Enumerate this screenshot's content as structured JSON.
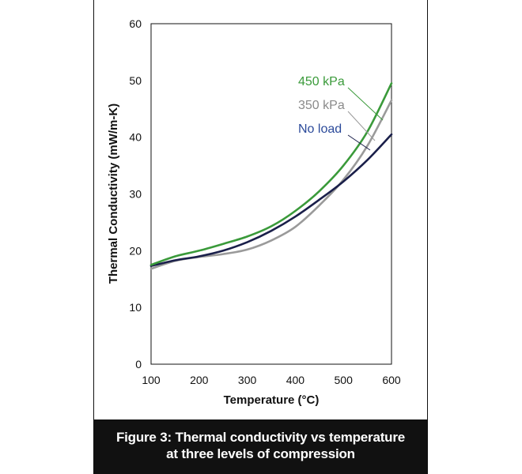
{
  "caption": {
    "line1": "Figure 3: Thermal conductivity vs temperature",
    "line2": "at three levels of compression"
  },
  "chart_data": {
    "type": "line",
    "title": "",
    "xlabel": "Temperature (°C)",
    "ylabel": "Thermal Conductivity (mW/m-K)",
    "xlim": [
      100,
      600
    ],
    "ylim": [
      0,
      60
    ],
    "xticks": [
      100,
      200,
      300,
      400,
      500,
      600
    ],
    "yticks": [
      0,
      10,
      20,
      30,
      40,
      50,
      60
    ],
    "grid": false,
    "series": [
      {
        "name": "450 kPa",
        "color": "#3a9a3a",
        "x": [
          100,
          150,
          200,
          250,
          300,
          350,
          400,
          450,
          500,
          550,
          600
        ],
        "y": [
          17.5,
          19.0,
          20.0,
          21.2,
          22.5,
          24.3,
          27.0,
          30.5,
          35.0,
          41.0,
          49.5
        ]
      },
      {
        "name": "350 kPa",
        "color": "#9a9a9a",
        "x": [
          100,
          150,
          200,
          250,
          300,
          350,
          400,
          450,
          500,
          550,
          600
        ],
        "y": [
          16.8,
          18.2,
          18.9,
          19.4,
          20.2,
          21.8,
          24.2,
          28.0,
          32.5,
          38.5,
          46.5
        ]
      },
      {
        "name": "No load",
        "color": "#1a1f4a",
        "x": [
          100,
          150,
          200,
          250,
          300,
          350,
          400,
          450,
          500,
          550,
          600
        ],
        "y": [
          17.3,
          18.3,
          19.0,
          20.0,
          21.5,
          23.5,
          26.0,
          29.0,
          32.2,
          36.0,
          40.5
        ]
      }
    ],
    "legend": [
      {
        "label": "450 kPa",
        "color": "#3a9a3a",
        "series_index": 0
      },
      {
        "label": "350 kPa",
        "color": "#8a8a8a",
        "series_index": 1
      },
      {
        "label": "No load",
        "color": "#2b4a9a",
        "series_index": 2
      }
    ]
  }
}
